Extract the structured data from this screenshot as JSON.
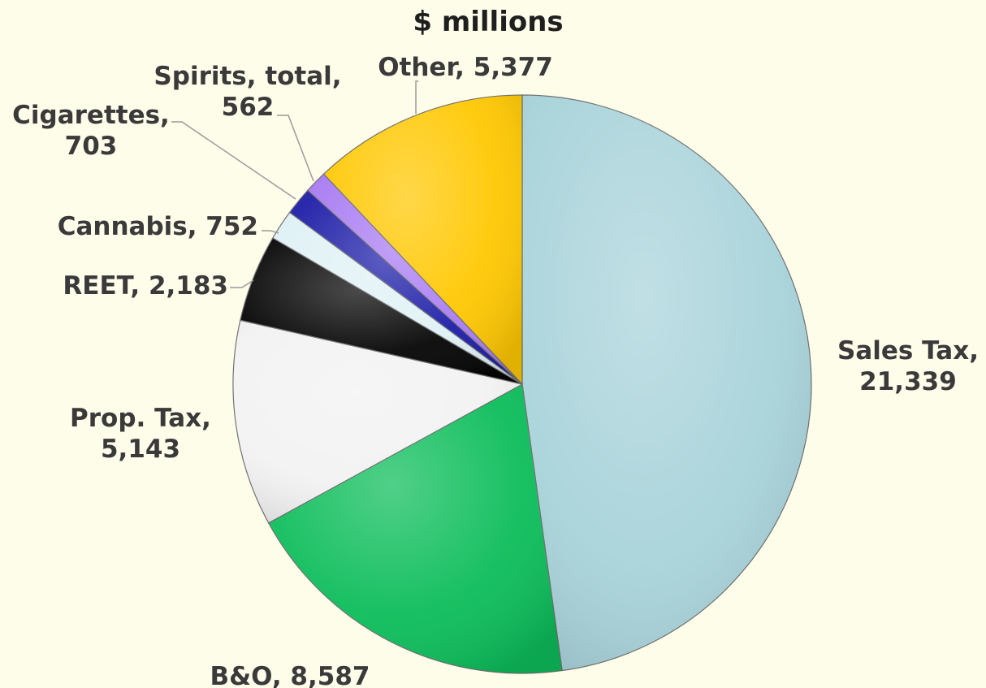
{
  "chart_data": {
    "type": "pie",
    "title": "$ millions",
    "units": "$ millions",
    "slices": [
      {
        "name": "Sales Tax",
        "value": 21339,
        "label_lines": [
          "Sales Tax,",
          "21,339"
        ],
        "color": "#a8d3da"
      },
      {
        "name": "B&O",
        "value": 8587,
        "label_lines": [
          "B&O,  8,587"
        ],
        "color": "#0cbd5a"
      },
      {
        "name": "Prop. Tax",
        "value": 5143,
        "label_lines": [
          "Prop. Tax,",
          "5,143"
        ],
        "color": "#f2f2f2"
      },
      {
        "name": "REET",
        "value": 2183,
        "label_lines": [
          "REET,  2,183"
        ],
        "color": "#050505"
      },
      {
        "name": "Cannabis",
        "value": 752,
        "label_lines": [
          "Cannabis,  752"
        ],
        "color": "#dff1f5"
      },
      {
        "name": "Cigarettes",
        "value": 703,
        "label_lines": [
          "Cigarettes,",
          "703"
        ],
        "color": "#1e1ea8"
      },
      {
        "name": "Spirits, total",
        "value": 562,
        "label_lines": [
          "Spirits, total,",
          "562"
        ],
        "color": "#a97cf2"
      },
      {
        "name": "Other",
        "value": 5377,
        "label_lines": [
          "Other,  5,377"
        ],
        "color": "#ffc802"
      }
    ],
    "start_angle_deg": 0,
    "direction": "clockwise",
    "legend": "none"
  }
}
